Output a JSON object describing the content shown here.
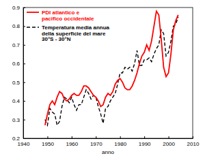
{
  "chart_data": {
    "type": "line",
    "x_label": "anno",
    "x": [
      1949,
      1950,
      1951,
      1952,
      1953,
      1954,
      1955,
      1956,
      1957,
      1958,
      1959,
      1960,
      1961,
      1962,
      1963,
      1964,
      1965,
      1966,
      1967,
      1968,
      1969,
      1970,
      1971,
      1972,
      1973,
      1974,
      1975,
      1976,
      1977,
      1978,
      1979,
      1980,
      1981,
      1982,
      1983,
      1984,
      1985,
      1986,
      1987,
      1988,
      1989,
      1990,
      1991,
      1992,
      1993,
      1994,
      1995,
      1996,
      1997,
      1998,
      1999,
      2000,
      2001,
      2002,
      2003,
      2004
    ],
    "series": [
      {
        "name": "PDI atlantico e\npacifico occidentale",
        "color": "#ff0000",
        "line_style": "solid",
        "values": [
          0.27,
          0.33,
          0.38,
          0.4,
          0.38,
          0.42,
          0.45,
          0.44,
          0.41,
          0.4,
          0.41,
          0.43,
          0.44,
          0.43,
          0.43,
          0.45,
          0.48,
          0.48,
          0.47,
          0.45,
          0.43,
          0.42,
          0.4,
          0.37,
          0.38,
          0.42,
          0.44,
          0.43,
          0.45,
          0.49,
          0.51,
          0.52,
          0.5,
          0.47,
          0.46,
          0.46,
          0.48,
          0.51,
          0.55,
          0.6,
          0.64,
          0.66,
          0.7,
          0.67,
          0.72,
          0.8,
          0.88,
          0.86,
          0.73,
          0.58,
          0.53,
          0.55,
          0.65,
          0.78,
          0.83,
          0.86
        ]
      },
      {
        "name": "Temperatura media annua\ndella superficie del mare\n30°S - 30°N",
        "color": "#000000",
        "line_style": "dashed",
        "values": [
          0.3,
          0.27,
          0.36,
          0.34,
          0.33,
          0.27,
          0.29,
          0.37,
          0.42,
          0.41,
          0.39,
          0.42,
          0.38,
          0.35,
          0.38,
          0.38,
          0.42,
          0.46,
          0.44,
          0.41,
          0.43,
          0.42,
          0.37,
          0.33,
          0.28,
          0.36,
          0.37,
          0.4,
          0.42,
          0.44,
          0.49,
          0.55,
          0.55,
          0.58,
          0.57,
          0.58,
          0.56,
          0.6,
          0.67,
          0.59,
          0.59,
          0.62,
          0.62,
          0.63,
          0.61,
          0.65,
          0.68,
          0.7,
          0.78,
          0.76,
          0.64,
          0.66,
          0.72,
          0.8,
          0.81,
          0.85
        ]
      }
    ],
    "xlim": [
      1940,
      2010
    ],
    "xticks": [
      1940,
      1950,
      1960,
      1970,
      1980,
      1990,
      2000,
      2010
    ],
    "ylim": [
      0.2,
      0.9
    ],
    "yticks": [
      0.2,
      0.3,
      0.4,
      0.5,
      0.6,
      0.7,
      0.8,
      0.9
    ],
    "grid": false,
    "legend": "upper left"
  }
}
